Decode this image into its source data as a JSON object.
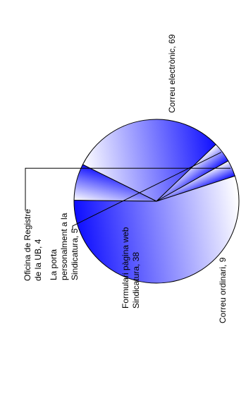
{
  "chart_data": {
    "type": "pie",
    "title": "",
    "slices": [
      {
        "label": "Correu electrònic, 69",
        "category": "Correu electrònic",
        "value": 69
      },
      {
        "label": "Correu ordinari, 9",
        "category": "Correu ordinari",
        "value": 9
      },
      {
        "label": "Formulari pàgina web Sindicatura, 38",
        "category": "Formulari pàgina web Sindicatura",
        "value": 38
      },
      {
        "label": "La porta personalment a la Sindicatura, 5",
        "category": "La porta personalment a la Sindicatura",
        "value": 5
      },
      {
        "label": "Oficina de Registre de la UB, 4",
        "category": "Oficina de Registre de la UB",
        "value": 4
      }
    ],
    "label_lines": [
      [
        "Correu electrònic, 69"
      ],
      [
        "Correu ordinari, 9"
      ],
      [
        "Formulari pàgina web",
        "Sindicatura, 38"
      ],
      [
        "La porta",
        "personalment a la",
        "Sindicatura, 5"
      ],
      [
        "Oficina de Registre",
        "de la UB, 4"
      ]
    ],
    "colors": {
      "base": "#1010ff",
      "light": "#ffffff",
      "edge": "#000000"
    },
    "rotation": "rotated 90° counter-clockwise",
    "legend": "none"
  }
}
